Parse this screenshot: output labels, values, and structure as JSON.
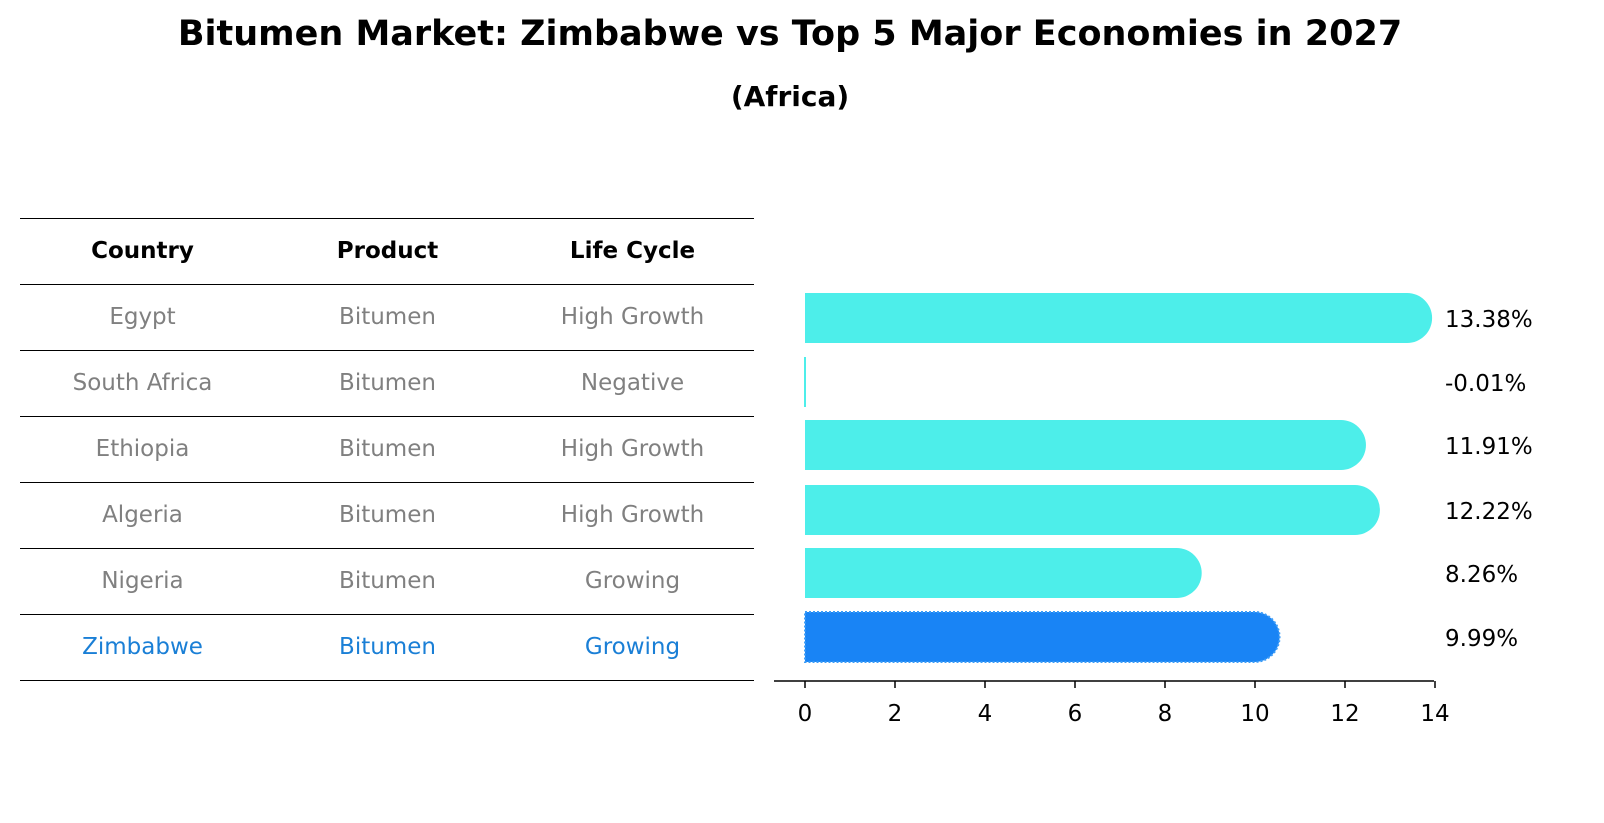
{
  "title": "Bitumen Market: Zimbabwe vs Top 5 Major Economies in 2027",
  "subtitle": "(Africa)",
  "table": {
    "headers": [
      "Country",
      "Product",
      "Life Cycle"
    ],
    "rows": [
      {
        "country": "Egypt",
        "product": "Bitumen",
        "life_cycle": "High Growth"
      },
      {
        "country": "South Africa",
        "product": "Bitumen",
        "life_cycle": "Negative"
      },
      {
        "country": "Ethiopia",
        "product": "Bitumen",
        "life_cycle": "High Growth"
      },
      {
        "country": "Algeria",
        "product": "Bitumen",
        "life_cycle": "High Growth"
      },
      {
        "country": "Nigeria",
        "product": "Bitumen",
        "life_cycle": "Growing"
      },
      {
        "country": "Zimbabwe",
        "product": "Bitumen",
        "life_cycle": "Growing"
      }
    ],
    "highlight_row": 5
  },
  "chart_data": {
    "type": "bar",
    "orientation": "horizontal",
    "categories": [
      "Egypt",
      "South Africa",
      "Ethiopia",
      "Algeria",
      "Nigeria",
      "Zimbabwe"
    ],
    "values": [
      13.38,
      -0.01,
      11.91,
      12.22,
      8.26,
      9.99
    ],
    "value_labels": [
      "13.38%",
      "-0.01%",
      "11.91%",
      "12.22%",
      "8.26%",
      "9.99%"
    ],
    "xlim": [
      0,
      14
    ],
    "xticks": [
      0,
      2,
      4,
      6,
      8,
      10,
      12,
      14
    ],
    "grid": false,
    "highlight_index": 5,
    "colors": {
      "bar": "#4deeea",
      "highlight": "#1984f5"
    }
  },
  "colors": {
    "highlight_text": "#1a7fd6",
    "muted_text": "#808080"
  }
}
